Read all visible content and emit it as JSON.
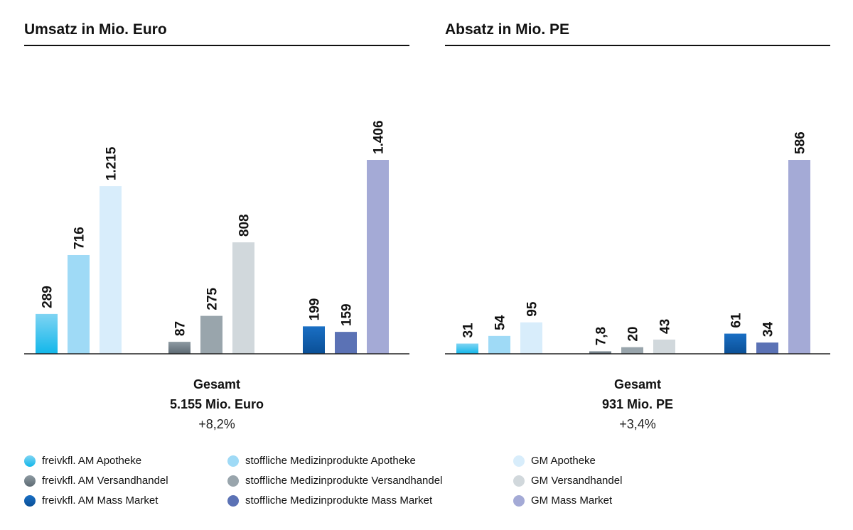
{
  "chart_data": [
    {
      "type": "bar",
      "title": "Umsatz in Mio. Euro",
      "groups": [
        {
          "bars": [
            {
              "series": 0,
              "value": 289,
              "label": "289"
            },
            {
              "series": 1,
              "value": 716,
              "label": "716"
            },
            {
              "series": 2,
              "value": 1215,
              "label": "1.215"
            }
          ]
        },
        {
          "bars": [
            {
              "series": 3,
              "value": 87,
              "label": "87"
            },
            {
              "series": 4,
              "value": 275,
              "label": "275"
            },
            {
              "series": 5,
              "value": 808,
              "label": "808"
            }
          ]
        },
        {
          "bars": [
            {
              "series": 6,
              "value": 199,
              "label": "199"
            },
            {
              "series": 7,
              "value": 159,
              "label": "159"
            },
            {
              "series": 8,
              "value": 1406,
              "label": "1.406"
            }
          ]
        }
      ],
      "ymax": 1406,
      "total": {
        "heading": "Gesamt",
        "value": "5.155 Mio. Euro",
        "change": "+8,2%"
      }
    },
    {
      "type": "bar",
      "title": "Absatz in Mio. PE",
      "groups": [
        {
          "bars": [
            {
              "series": 0,
              "value": 31,
              "label": "31"
            },
            {
              "series": 1,
              "value": 54,
              "label": "54"
            },
            {
              "series": 2,
              "value": 95,
              "label": "95"
            }
          ]
        },
        {
          "bars": [
            {
              "series": 3,
              "value": 7.8,
              "label": "7,8"
            },
            {
              "series": 4,
              "value": 20,
              "label": "20"
            },
            {
              "series": 5,
              "value": 43,
              "label": "43"
            }
          ]
        },
        {
          "bars": [
            {
              "series": 6,
              "value": 61,
              "label": "61"
            },
            {
              "series": 7,
              "value": 34,
              "label": "34"
            },
            {
              "series": 8,
              "value": 586,
              "label": "586"
            }
          ]
        }
      ],
      "ymax": 586,
      "total": {
        "heading": "Gesamt",
        "value": "931 Mio. PE",
        "change": "+3,4%"
      }
    }
  ],
  "series": [
    {
      "name": "freivkfl. AM Apotheke",
      "color": "#12b7ea",
      "color_top": "#7fd4f3",
      "gradient": true
    },
    {
      "name": "stoffliche Medizinprodukte Apotheke",
      "color": "#9fdaf6",
      "gradient": false
    },
    {
      "name": "GM Apotheke",
      "color": "#d8edfb",
      "gradient": false
    },
    {
      "name": "freivkfl. AM Versandhandel",
      "color": "#5d6a73",
      "color_top": "#8e9aa2",
      "gradient": true
    },
    {
      "name": "stoffliche Medizinprodukte Versandhandel",
      "color": "#99a5ac",
      "gradient": false
    },
    {
      "name": "GM Versandhandel",
      "color": "#d1d8dc",
      "gradient": false
    },
    {
      "name": "freivkfl. AM Mass Market",
      "color": "#0a4f96",
      "color_top": "#1a6fc4",
      "gradient": true
    },
    {
      "name": "stoffliche Medizinprodukte Mass Market",
      "color": "#5b72b5",
      "gradient": false
    },
    {
      "name": "GM Mass Market",
      "color": "#a4aad6",
      "gradient": false
    }
  ]
}
